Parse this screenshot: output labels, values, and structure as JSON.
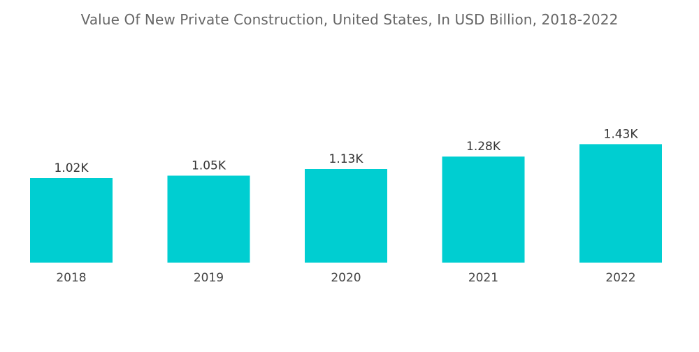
{
  "chart_data": {
    "type": "bar",
    "title": "Value Of New Private Construction, United States, In USD Billion, 2018-2022",
    "xlabel": "",
    "ylabel": "",
    "categories": [
      "2018",
      "2019",
      "2020",
      "2021",
      "2022"
    ],
    "values": [
      1020,
      1050,
      1130,
      1280,
      1430
    ],
    "value_labels": [
      "1.02K",
      "1.05K",
      "1.13K",
      "1.28K",
      "1.43K"
    ],
    "ylim": [
      0,
      2000
    ],
    "y_axis_visible": false,
    "grid": false,
    "legend": "none",
    "bar_color": "#00CED1"
  }
}
